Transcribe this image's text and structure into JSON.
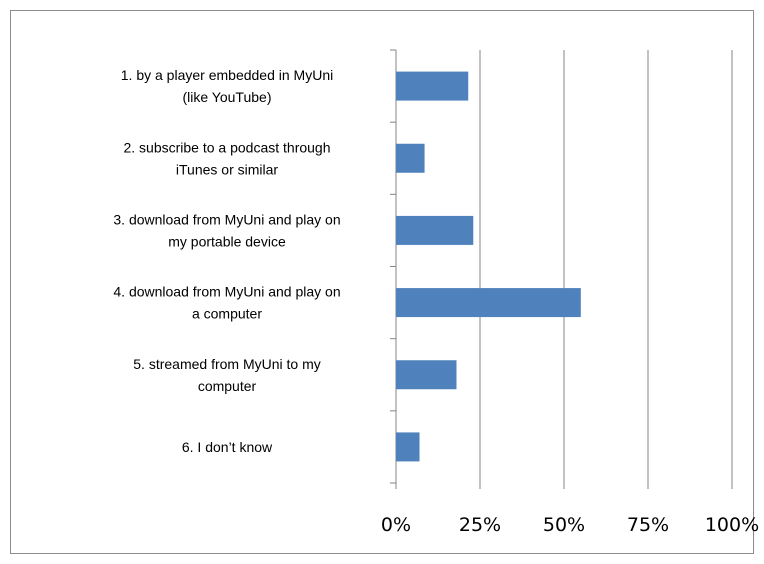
{
  "chart_data": {
    "type": "bar",
    "orientation": "horizontal",
    "title": "",
    "xlabel": "",
    "ylabel": "",
    "categories": [
      [
        "1. by a player embedded in MyUni",
        "(like YouTube)"
      ],
      [
        "2. subscribe to a podcast through",
        "iTunes or similar"
      ],
      [
        "3. download from MyUni and play on",
        "my portable device"
      ],
      [
        "4. download from MyUni and play on",
        "a computer"
      ],
      [
        "5. streamed from MyUni to my",
        "computer"
      ],
      [
        "6. I don’t know"
      ]
    ],
    "values": [
      21.5,
      8.5,
      23,
      55,
      18,
      7
    ],
    "xlim": [
      0,
      100
    ],
    "ticks": [
      "0%",
      "25%",
      "50%",
      "75%",
      "100%"
    ],
    "tick_values": [
      0,
      25,
      50,
      75,
      100
    ],
    "grid": true,
    "bar_color": "#4F81BD",
    "grid_color": "#868686"
  }
}
